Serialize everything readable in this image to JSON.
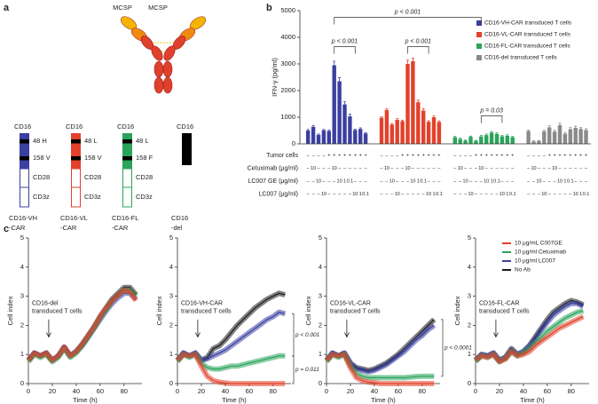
{
  "panel_labels": [
    "a",
    "b",
    "c"
  ],
  "panel_a": {
    "antigen_labels": [
      "MCSP",
      "MCSP"
    ],
    "constructs": [
      {
        "header": "CD16",
        "domains": [
          "48 H",
          "158 V",
          "CD28",
          "CD3z"
        ],
        "caption": [
          "CD16-VH",
          "-CAR"
        ]
      },
      {
        "header": "CD16",
        "domains": [
          "48 L",
          "158 V",
          "CD28",
          "CD3z"
        ],
        "caption": [
          "CD16-VL",
          "-CAR"
        ]
      },
      {
        "header": "CD16",
        "domains": [
          "48 L",
          "158 F",
          "CD28",
          "CD3z"
        ],
        "caption": [
          "CD16-FL",
          "-CAR"
        ]
      },
      {
        "header": "CD16",
        "caption": [
          "CD16",
          "-del"
        ]
      }
    ]
  },
  "chart_data": [
    {
      "type": "bar",
      "ylabel": "IFN-γ (pg/ml)",
      "ylim": [
        0,
        5000
      ],
      "yticks": [
        0,
        1000,
        2000,
        3000,
        4000,
        5000
      ],
      "table": [
        {
          "label": "Tumor cells",
          "cells": [
            "–",
            "–",
            "–",
            "–",
            "+",
            "+",
            "+",
            "+",
            "+",
            "+",
            "+",
            "+"
          ]
        },
        {
          "label": "Cetuximab (μg/ml)",
          "cells": [
            "–",
            "10",
            "–",
            "–",
            "–",
            "10",
            "–",
            "–",
            "–",
            "–",
            "–",
            "–"
          ]
        },
        {
          "label": "LC007 GE (μg/ml)",
          "cells": [
            "–",
            "–",
            "10",
            "–",
            "–",
            "–",
            "10",
            "1",
            "0.1",
            "–",
            "–",
            "–"
          ]
        },
        {
          "label": "LC007 (μg/ml)",
          "cells": [
            "–",
            "–",
            "–",
            "10",
            "–",
            "–",
            "–",
            "–",
            "–",
            "10",
            "1",
            "0.1"
          ]
        }
      ],
      "series": [
        {
          "name": "CD16-VH-CAR transduced T cells",
          "color": "#3b3fa0",
          "values": [
            500,
            640,
            340,
            510,
            480,
            2950,
            2350,
            1480,
            1030,
            520,
            560,
            390
          ],
          "errors": [
            40,
            50,
            30,
            30,
            30,
            150,
            140,
            100,
            80,
            30,
            40,
            30
          ]
        },
        {
          "name": "CD16-VL-CAR transduced T cells",
          "color": "#e2412b",
          "values": [
            980,
            1270,
            720,
            900,
            850,
            3000,
            3100,
            1560,
            1250,
            830,
            1000,
            820
          ],
          "errors": [
            40,
            50,
            40,
            50,
            40,
            140,
            120,
            80,
            70,
            40,
            50,
            40
          ]
        },
        {
          "name": "CD16-FL-CAR transduced T cells",
          "color": "#2aa45a",
          "values": [
            250,
            180,
            120,
            260,
            110,
            280,
            330,
            420,
            370,
            280,
            300,
            250
          ],
          "errors": [
            30,
            30,
            20,
            30,
            20,
            40,
            40,
            40,
            40,
            30,
            40,
            30
          ]
        },
        {
          "name": "CD16-del transduced T cells",
          "color": "#8a8a8a",
          "values": [
            480,
            90,
            110,
            470,
            620,
            460,
            700,
            380,
            550,
            600,
            560,
            520
          ],
          "errors": [
            40,
            20,
            20,
            40,
            60,
            50,
            80,
            50,
            60,
            60,
            50,
            50
          ]
        }
      ],
      "annotations": [
        "p < 0.001",
        "p < 0.001",
        "p < 0.001",
        "p = 0.03"
      ]
    },
    {
      "type": "line",
      "xlabel": "Time (h)",
      "ylabel": "Cell index",
      "xlim": [
        0,
        95
      ],
      "xticks": [
        0,
        20,
        40,
        60,
        80
      ],
      "ylim": [
        0,
        5
      ],
      "yticks": [
        0,
        1,
        2,
        3,
        4,
        5
      ],
      "annotation": [
        "CD16-del",
        "transduced T cells"
      ],
      "x": [
        0,
        5,
        10,
        15,
        20,
        25,
        30,
        35,
        40,
        45,
        50,
        55,
        60,
        65,
        70,
        75,
        80,
        85,
        90
      ],
      "series": [
        {
          "color": "#1a1a1a",
          "values": [
            0.8,
            1.05,
            0.95,
            1.05,
            0.8,
            0.95,
            1.25,
            0.95,
            1.1,
            1.35,
            1.65,
            1.95,
            2.3,
            2.6,
            2.9,
            3.1,
            3.3,
            3.3,
            3.05
          ]
        },
        {
          "color": "#3b3fa0",
          "values": [
            0.8,
            1.05,
            0.95,
            1.05,
            0.8,
            0.95,
            1.25,
            0.95,
            1.1,
            1.3,
            1.6,
            1.9,
            2.2,
            2.5,
            2.75,
            2.95,
            3.1,
            3.1,
            2.9
          ]
        },
        {
          "color": "#2aa45a",
          "values": [
            0.75,
            1.0,
            0.9,
            1.0,
            0.75,
            0.9,
            1.2,
            0.9,
            1.05,
            1.3,
            1.6,
            1.9,
            2.25,
            2.55,
            2.85,
            3.05,
            3.2,
            3.2,
            3.0
          ]
        },
        {
          "color": "#e2412b",
          "values": [
            0.8,
            1.05,
            0.95,
            1.05,
            0.8,
            0.95,
            1.25,
            0.95,
            1.1,
            1.35,
            1.65,
            1.95,
            2.3,
            2.6,
            2.85,
            3.05,
            3.2,
            3.15,
            2.85
          ]
        }
      ]
    },
    {
      "type": "line",
      "xlabel": "Time (h)",
      "ylabel": "Cell index",
      "xlim": [
        0,
        95
      ],
      "xticks": [
        0,
        20,
        40,
        60,
        80
      ],
      "ylim": [
        0,
        5
      ],
      "yticks": [
        0,
        1,
        2,
        3,
        4,
        5
      ],
      "annotation": [
        "CD16-VH-CAR",
        "transduced T cells"
      ],
      "pvalues": [
        "p < 0.001",
        "p = 0.011"
      ],
      "x": [
        0,
        5,
        10,
        15,
        20,
        25,
        30,
        35,
        40,
        45,
        50,
        55,
        60,
        65,
        70,
        75,
        80,
        85,
        90
      ],
      "series": [
        {
          "color": "#1a1a1a",
          "values": [
            0.8,
            1.05,
            0.95,
            1.05,
            0.8,
            0.9,
            1.2,
            1.3,
            1.5,
            1.75,
            2.0,
            2.2,
            2.4,
            2.6,
            2.75,
            2.9,
            3.0,
            3.1,
            3.05
          ]
        },
        {
          "color": "#3b3fa0",
          "values": [
            0.8,
            1.05,
            0.95,
            1.05,
            0.8,
            0.85,
            0.95,
            1.05,
            1.15,
            1.3,
            1.45,
            1.6,
            1.75,
            1.9,
            2.05,
            2.2,
            2.3,
            2.45,
            2.4
          ]
        },
        {
          "color": "#2aa45a",
          "values": [
            0.75,
            1.0,
            0.9,
            1.0,
            0.7,
            0.55,
            0.5,
            0.5,
            0.55,
            0.6,
            0.6,
            0.65,
            0.7,
            0.75,
            0.8,
            0.85,
            0.9,
            0.95,
            0.95
          ]
        },
        {
          "color": "#e2412b",
          "values": [
            0.8,
            1.0,
            0.95,
            1.0,
            0.6,
            0.25,
            0.1,
            0.05,
            0.02,
            0,
            0,
            0,
            0,
            0,
            0,
            0,
            0,
            0,
            0
          ]
        }
      ]
    },
    {
      "type": "line",
      "xlabel": "Time (h)",
      "ylabel": "Cell index",
      "xlim": [
        0,
        95
      ],
      "xticks": [
        0,
        20,
        40,
        60,
        80
      ],
      "ylim": [
        0,
        5
      ],
      "yticks": [
        0,
        1,
        2,
        3,
        4,
        5
      ],
      "annotation": [
        "CD16-VL-CAR",
        "transduced T cells"
      ],
      "pvalues": [
        "p < 0.0001"
      ],
      "x": [
        0,
        5,
        10,
        15,
        20,
        25,
        30,
        35,
        40,
        45,
        50,
        55,
        60,
        65,
        70,
        75,
        80,
        85,
        90
      ],
      "series": [
        {
          "color": "#1a1a1a",
          "values": [
            0.8,
            1.05,
            0.95,
            1.05,
            0.7,
            0.55,
            0.5,
            0.45,
            0.5,
            0.6,
            0.7,
            0.85,
            1.0,
            1.2,
            1.4,
            1.6,
            1.8,
            2.0,
            2.2
          ]
        },
        {
          "color": "#3b3fa0",
          "values": [
            0.8,
            1.05,
            0.95,
            1.05,
            0.7,
            0.5,
            0.45,
            0.4,
            0.45,
            0.55,
            0.65,
            0.8,
            0.95,
            1.1,
            1.3,
            1.5,
            1.65,
            1.85,
            2.0
          ]
        },
        {
          "color": "#2aa45a",
          "values": [
            0.75,
            1.0,
            0.9,
            1.0,
            0.6,
            0.35,
            0.25,
            0.2,
            0.2,
            0.2,
            0.2,
            0.2,
            0.2,
            0.2,
            0.22,
            0.24,
            0.25,
            0.25,
            0.25
          ]
        },
        {
          "color": "#e2412b",
          "values": [
            0.8,
            1.0,
            0.95,
            1.0,
            0.55,
            0.2,
            0.1,
            0.05,
            0.03,
            0,
            0,
            0,
            0,
            0,
            0,
            0,
            0,
            0,
            0
          ]
        }
      ]
    },
    {
      "type": "line",
      "xlabel": "Time (h)",
      "ylabel": "Cell index",
      "xlim": [
        0,
        95
      ],
      "xticks": [
        0,
        20,
        40,
        60,
        80
      ],
      "ylim": [
        0,
        5
      ],
      "yticks": [
        0,
        1,
        2,
        3,
        4,
        5
      ],
      "annotation": [
        "CD16-FL-CAR",
        "transduced T cells"
      ],
      "x": [
        0,
        5,
        10,
        15,
        20,
        25,
        30,
        35,
        40,
        45,
        50,
        55,
        60,
        65,
        70,
        75,
        80,
        85,
        90
      ],
      "series": [
        {
          "name": "No Ab",
          "color": "#1a1a1a",
          "values": [
            0.8,
            1.0,
            0.95,
            1.05,
            0.8,
            0.9,
            1.2,
            1.0,
            1.1,
            1.3,
            1.6,
            1.9,
            2.2,
            2.45,
            2.6,
            2.75,
            2.85,
            2.8,
            2.7
          ]
        },
        {
          "name": "10 μg/ml LC007",
          "color": "#3b3fa0",
          "values": [
            0.8,
            1.0,
            0.95,
            1.05,
            0.8,
            0.9,
            1.15,
            1.0,
            1.1,
            1.3,
            1.55,
            1.85,
            2.1,
            2.35,
            2.5,
            2.65,
            2.75,
            2.75,
            2.65
          ]
        },
        {
          "name": "10 μg/ml Cetuximab",
          "color": "#2aa45a",
          "values": [
            0.75,
            0.95,
            0.9,
            1.0,
            0.75,
            0.85,
            1.1,
            0.95,
            1.05,
            1.2,
            1.4,
            1.6,
            1.8,
            1.95,
            2.1,
            2.25,
            2.35,
            2.45,
            2.5
          ]
        },
        {
          "name": "10 μg/mL C007GE",
          "color": "#e2412b",
          "values": [
            0.8,
            0.95,
            0.9,
            1.0,
            0.75,
            0.85,
            1.1,
            0.95,
            1.0,
            1.1,
            1.3,
            1.45,
            1.6,
            1.75,
            1.9,
            2.0,
            2.1,
            2.2,
            2.3
          ]
        }
      ]
    }
  ]
}
